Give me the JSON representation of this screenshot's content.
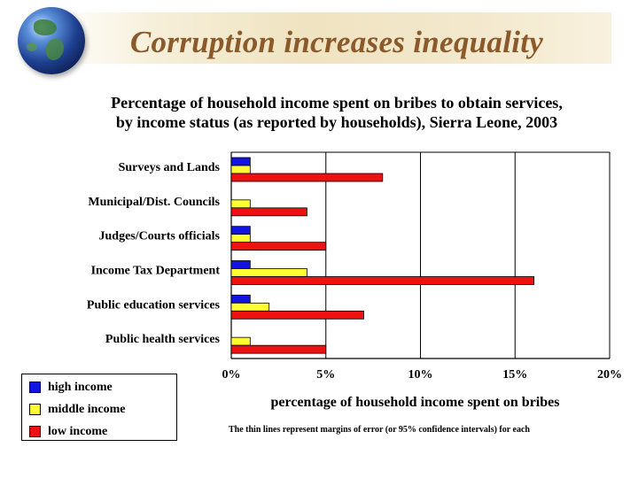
{
  "slide": {
    "title": "Corruption increases inequality"
  },
  "colors": {
    "high": "#1414e0",
    "middle": "#ffff33",
    "low": "#ee1111",
    "title": "#8b5a2b"
  },
  "chart_data": {
    "type": "bar",
    "orientation": "horizontal",
    "title": "Percentage of household income spent on bribes to obtain services, by income status  (as reported by households), Sierra Leone, 2003",
    "title_lines": [
      "Percentage of household income spent on bribes to obtain services,",
      "by income status  (as reported by households), Sierra Leone, 2003"
    ],
    "categories": [
      "Surveys and Lands",
      "Municipal/Dist. Councils",
      "Judges/Courts officials",
      "Income Tax Department",
      "Public education services",
      "Public health services"
    ],
    "series": [
      {
        "name": "high income",
        "values": [
          1,
          0,
          1,
          1,
          1,
          0
        ]
      },
      {
        "name": "middle income",
        "values": [
          1,
          1,
          1,
          4,
          2,
          1
        ]
      },
      {
        "name": "low income",
        "values": [
          8,
          4,
          5,
          16,
          7,
          5
        ]
      }
    ],
    "xlabel": "percentage of household income spent on bribes",
    "ylabel": "",
    "xlim": [
      0,
      20
    ],
    "xticks": [
      0,
      5,
      10,
      15,
      20
    ],
    "xtick_labels": [
      "0%",
      "5%",
      "10%",
      "15%",
      "20%"
    ],
    "grid": true,
    "legend": "bottom-left",
    "footnote": "The thin lines represent margins of error (or 95% confidence intervals) for each"
  }
}
